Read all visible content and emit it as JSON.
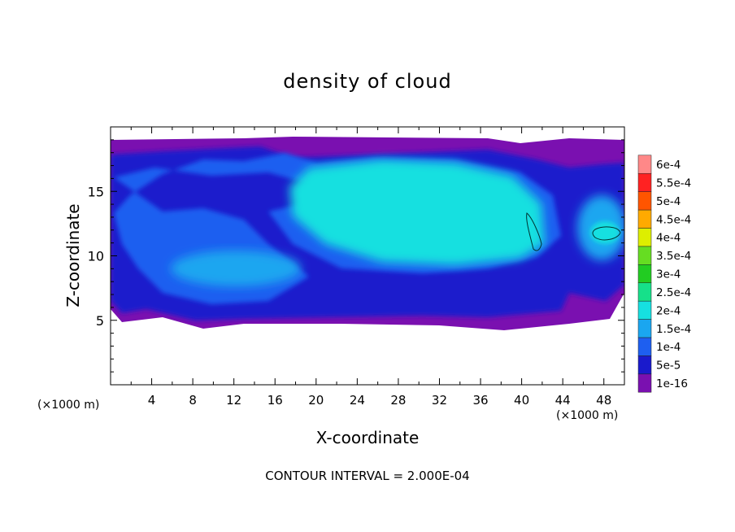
{
  "chart_data": {
    "type": "heatmap",
    "title": "density of cloud",
    "xlabel": "X-coordinate",
    "ylabel": "Z-coordinate",
    "x_unit_left": "(×1000 m)",
    "x_unit_right": "(×1000 m)",
    "note": "CONTOUR INTERVAL = 2.000E-04",
    "xlim": [
      0,
      50
    ],
    "ylim": [
      0,
      20
    ],
    "xticks": [
      "4",
      "8",
      "12",
      "16",
      "20",
      "24",
      "28",
      "32",
      "36",
      "40",
      "44",
      "48"
    ],
    "yticks": [
      "5",
      "10",
      "15"
    ],
    "colorbar": {
      "labels": [
        "1e-16",
        "5e-5",
        "1e-4",
        "1.5e-4",
        "2e-4",
        "2.5e-4",
        "3e-4",
        "3.5e-4",
        "4e-4",
        "4.5e-4",
        "5e-4",
        "5.5e-4",
        "6e-4"
      ],
      "colors": [
        "#7a10b0",
        "#1a1acc",
        "#1e5ff0",
        "#1aa6f0",
        "#16e0e0",
        "#16e08a",
        "#22cc22",
        "#66dd22",
        "#ddee00",
        "#ffaa00",
        "#ff5500",
        "#ff2222",
        "#ff8888"
      ]
    }
  }
}
